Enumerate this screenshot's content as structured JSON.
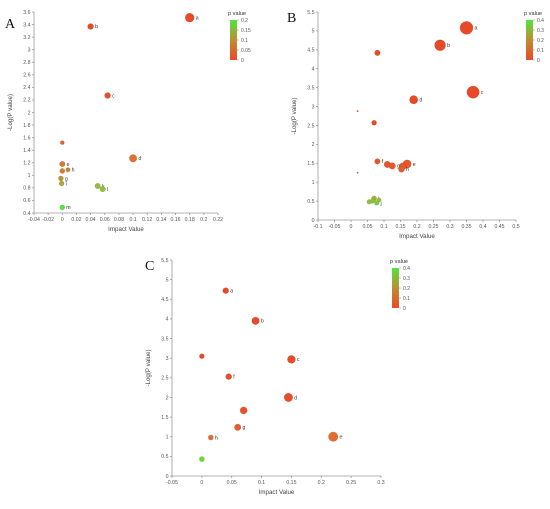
{
  "chart_data": [
    {
      "panel": "A",
      "type": "scatter",
      "xlabel": "Impact Value",
      "ylabel": "-Log(P value)",
      "xlim": [
        -0.04,
        0.22
      ],
      "ylim": [
        0.4,
        3.6
      ],
      "xticks": [
        "-0.04",
        "-0.02",
        "0",
        "0.02",
        "0.04",
        "0.06",
        "0.08",
        "0.1",
        "0.12",
        "0.14",
        "0.16",
        "0.18",
        "0.2",
        "0.22"
      ],
      "yticks": [
        "0.4",
        "0.6",
        "0.8",
        "1",
        "1.2",
        "1.4",
        "1.6",
        "1.8",
        "2",
        "2.2",
        "2.4",
        "2.6",
        "2.8",
        "3",
        "3.2",
        "3.4",
        "3.6"
      ],
      "legend": {
        "title": "p value",
        "ticks": [
          "0.2",
          "0.15",
          "0.1",
          "0.05",
          "0"
        ],
        "max": 0.2
      },
      "points": [
        {
          "label": "a",
          "x": 0.18,
          "y": 3.51,
          "p": 0.0003,
          "r": 4.5
        },
        {
          "label": "b",
          "x": 0.04,
          "y": 3.37,
          "p": 0.0004,
          "r": 3
        },
        {
          "label": "c",
          "x": 0.064,
          "y": 2.27,
          "p": 0.005,
          "r": 3
        },
        {
          "label": "d",
          "x": 0.1,
          "y": 1.27,
          "p": 0.054,
          "r": 3.8
        },
        {
          "label": "",
          "x": 0.0,
          "y": 1.52,
          "p": 0.03,
          "r": 2
        },
        {
          "label": "e",
          "x": 0.0,
          "y": 1.18,
          "p": 0.066,
          "r": 2.8
        },
        {
          "label": "f",
          "x": 0.0,
          "y": 1.07,
          "p": 0.085,
          "r": 2.6
        },
        {
          "label": "h",
          "x": 0.008,
          "y": 1.09,
          "p": 0.081,
          "r": 2.2
        },
        {
          "label": "g",
          "x": -0.002,
          "y": 0.95,
          "p": 0.11,
          "r": 2.5
        },
        {
          "label": "i",
          "x": -0.001,
          "y": 0.87,
          "p": 0.13,
          "r": 2.5
        },
        {
          "label": "k",
          "x": 0.05,
          "y": 0.83,
          "p": 0.148,
          "r": 2.8
        },
        {
          "label": "l",
          "x": 0.057,
          "y": 0.78,
          "p": 0.16,
          "r": 2.8
        },
        {
          "label": "m",
          "x": 0.0,
          "y": 0.49,
          "p": 0.3,
          "r": 2.5
        }
      ]
    },
    {
      "panel": "B",
      "type": "scatter",
      "xlabel": "Impact Value",
      "ylabel": "-Log(P value)",
      "xlim": [
        -0.1,
        0.5
      ],
      "ylim": [
        0,
        5.5
      ],
      "xticks": [
        "-0.1",
        "-0.05",
        "0",
        "0.05",
        "0.1",
        "0.15",
        "0.2",
        "0.25",
        "0.3",
        "0.35",
        "0.4",
        "0.45",
        "0.5"
      ],
      "yticks": [
        "0",
        "0.5",
        "1",
        "1.5",
        "2",
        "2.5",
        "3",
        "3.5",
        "4",
        "4.5",
        "5",
        "5.5"
      ],
      "legend": {
        "title": "p value",
        "ticks": [
          "0.4",
          "0.3",
          "0.2",
          "0.1",
          "0"
        ],
        "max": 0.4
      },
      "points": [
        {
          "label": "a",
          "x": 0.35,
          "y": 5.08,
          "p": 1e-05,
          "r": 6.5
        },
        {
          "label": "b",
          "x": 0.27,
          "y": 4.62,
          "p": 2e-05,
          "r": 5.5
        },
        {
          "label": "",
          "x": 0.08,
          "y": 4.42,
          "p": 4e-05,
          "r": 2.8
        },
        {
          "label": "c",
          "x": 0.37,
          "y": 3.38,
          "p": 0.0004,
          "r": 6.2
        },
        {
          "label": "d",
          "x": 0.19,
          "y": 3.18,
          "p": 0.0007,
          "r": 4.2
        },
        {
          "label": "",
          "x": 0.02,
          "y": 2.88,
          "p": 0.0013,
          "r": 0.8
        },
        {
          "label": "",
          "x": 0.07,
          "y": 2.57,
          "p": 0.0027,
          "r": 2.5
        },
        {
          "label": "f",
          "x": 0.08,
          "y": 1.55,
          "p": 0.028,
          "r": 2.8
        },
        {
          "label": "",
          "x": 0.11,
          "y": 1.47,
          "p": 0.034,
          "r": 3.3
        },
        {
          "label": "g",
          "x": 0.125,
          "y": 1.43,
          "p": 0.037,
          "r": 3.3
        },
        {
          "label": "e",
          "x": 0.17,
          "y": 1.48,
          "p": 0.033,
          "r": 4.2
        },
        {
          "label": "",
          "x": 0.157,
          "y": 1.42,
          "p": 0.038,
          "r": 3.6
        },
        {
          "label": "h",
          "x": 0.153,
          "y": 1.34,
          "p": 0.046,
          "r": 3
        },
        {
          "label": "",
          "x": 0.02,
          "y": 1.25,
          "p": 0.056,
          "r": 0.8
        },
        {
          "label": "i",
          "x": 0.07,
          "y": 0.57,
          "p": 0.27,
          "r": 2.6
        },
        {
          "label": "",
          "x": 0.055,
          "y": 0.48,
          "p": 0.33,
          "r": 2.3
        },
        {
          "label": "",
          "x": 0.065,
          "y": 0.5,
          "p": 0.32,
          "r": 2.3
        },
        {
          "label": "j",
          "x": 0.078,
          "y": 0.45,
          "p": 0.35,
          "r": 2.3
        },
        {
          "label": "",
          "x": 0.085,
          "y": 0.53,
          "p": 0.3,
          "r": 2.1
        }
      ]
    },
    {
      "panel": "C",
      "type": "scatter",
      "xlabel": "Impact Value",
      "ylabel": "-Log(P value)",
      "xlim": [
        -0.05,
        0.3
      ],
      "ylim": [
        0,
        5.5
      ],
      "xticks": [
        "-0.05",
        "0",
        "0.05",
        "0.1",
        "0.15",
        "0.2",
        "0.25",
        "0.3"
      ],
      "yticks": [
        "0",
        "0.5",
        "1",
        "1.5",
        "2",
        "2.5",
        "3",
        "3.5",
        "4",
        "4.5",
        "5",
        "5.5"
      ],
      "legend": {
        "title": "p value",
        "ticks": [
          "0.4",
          "0.3",
          "0.2",
          "0.1",
          "0"
        ],
        "max": 0.4
      },
      "points": [
        {
          "label": "a",
          "x": 0.04,
          "y": 4.72,
          "p": 2e-05,
          "r": 3
        },
        {
          "label": "b",
          "x": 0.09,
          "y": 3.95,
          "p": 0.0001,
          "r": 3.8
        },
        {
          "label": "",
          "x": 0.0,
          "y": 3.05,
          "p": 0.001,
          "r": 2.5
        },
        {
          "label": "c",
          "x": 0.15,
          "y": 2.97,
          "p": 0.0011,
          "r": 4
        },
        {
          "label": "f",
          "x": 0.045,
          "y": 2.53,
          "p": 0.003,
          "r": 3
        },
        {
          "label": "d",
          "x": 0.145,
          "y": 2.0,
          "p": 0.01,
          "r": 4.3
        },
        {
          "label": "",
          "x": 0.07,
          "y": 1.67,
          "p": 0.021,
          "r": 3.6
        },
        {
          "label": "g",
          "x": 0.06,
          "y": 1.24,
          "p": 0.058,
          "r": 3.3
        },
        {
          "label": "e",
          "x": 0.22,
          "y": 1.0,
          "p": 0.1,
          "r": 4.8
        },
        {
          "label": "h",
          "x": 0.015,
          "y": 0.98,
          "p": 0.105,
          "r": 2.6
        },
        {
          "label": "",
          "x": 0.0,
          "y": 0.43,
          "p": 0.37,
          "r": 2.6
        }
      ]
    }
  ]
}
